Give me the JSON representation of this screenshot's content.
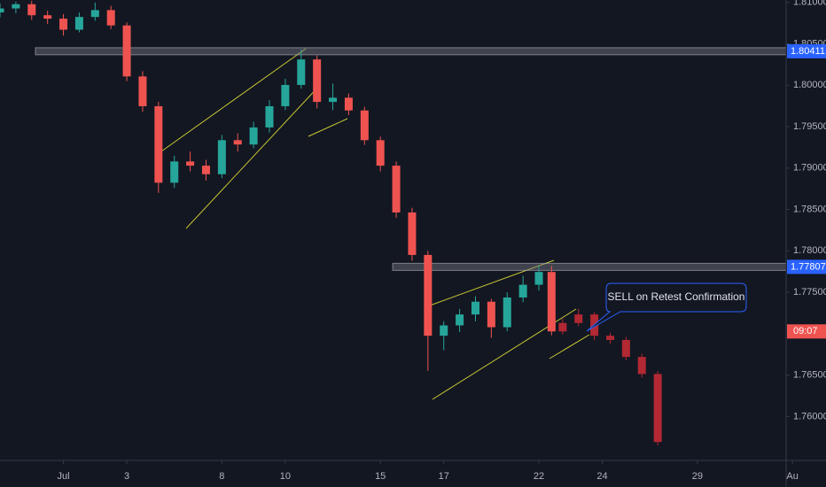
{
  "chart_data": {
    "type": "candlestick",
    "colors": {
      "up": "#26a69a",
      "down": "#ef5350",
      "projection": "#b22833",
      "level": "#787b86",
      "level_label": "#2962ff",
      "countdown": "#ef5350",
      "trendline": "#c8c832"
    },
    "xlim": [
      -2,
      22.8
    ],
    "xticks": [
      {
        "value": 0,
        "label": "Jul"
      },
      {
        "value": 2,
        "label": "3"
      },
      {
        "value": 5,
        "label": "8"
      },
      {
        "value": 7,
        "label": "10"
      },
      {
        "value": 10,
        "label": "15"
      },
      {
        "value": 12,
        "label": "17"
      },
      {
        "value": 15,
        "label": "22"
      },
      {
        "value": 17,
        "label": "24"
      },
      {
        "value": 20,
        "label": "29"
      },
      {
        "value": 23,
        "label": "Au"
      }
    ],
    "ylim": [
      1.75469,
      1.8103
    ],
    "yticks": [
      {
        "value": 1.81,
        "label": "1.81000"
      },
      {
        "value": 1.805,
        "label": "1.80500"
      },
      {
        "value": 1.8,
        "label": "1.80000"
      },
      {
        "value": 1.795,
        "label": "1.79500"
      },
      {
        "value": 1.79,
        "label": "1.79000"
      },
      {
        "value": 1.785,
        "label": "1.78500"
      },
      {
        "value": 1.78,
        "label": "1.78000"
      },
      {
        "value": 1.775,
        "label": "1.77500"
      },
      {
        "value": 1.765,
        "label": "1.76500"
      },
      {
        "value": 1.76,
        "label": "1.76000"
      }
    ],
    "levels": [
      1.80411,
      1.77807
    ],
    "countdown": "09:07",
    "annotation": "SELL on Retest Confirmation",
    "candles": [
      {
        "x": -2,
        "o": 1.8088,
        "h": 1.8099,
        "l": 1.8082,
        "c": 1.80928
      },
      {
        "x": -1.5,
        "o": 1.80928,
        "h": 1.8101,
        "l": 1.8087,
        "c": 1.80979
      },
      {
        "x": -1,
        "o": 1.80979,
        "h": 1.8102,
        "l": 1.8079,
        "c": 1.80846
      },
      {
        "x": -0.5,
        "o": 1.80846,
        "h": 1.809,
        "l": 1.8074,
        "c": 1.80805
      },
      {
        "x": 0,
        "o": 1.80805,
        "h": 1.8086,
        "l": 1.806,
        "c": 1.80671
      },
      {
        "x": 0.5,
        "o": 1.80671,
        "h": 1.8088,
        "l": 1.8064,
        "c": 1.80825
      },
      {
        "x": 1,
        "o": 1.80825,
        "h": 1.81,
        "l": 1.8078,
        "c": 1.80908
      },
      {
        "x": 1.5,
        "o": 1.80908,
        "h": 1.8096,
        "l": 1.8068,
        "c": 1.80723
      },
      {
        "x": 2,
        "o": 1.80723,
        "h": 1.8076,
        "l": 1.8005,
        "c": 1.80107
      },
      {
        "x": 2.5,
        "o": 1.80107,
        "h": 1.8017,
        "l": 1.7968,
        "c": 1.79747
      },
      {
        "x": 3,
        "o": 1.79747,
        "h": 1.798,
        "l": 1.787,
        "c": 1.78823
      },
      {
        "x": 3.5,
        "o": 1.78823,
        "h": 1.7915,
        "l": 1.7876,
        "c": 1.7908
      },
      {
        "x": 4,
        "o": 1.7908,
        "h": 1.792,
        "l": 1.7896,
        "c": 1.79029
      },
      {
        "x": 4.5,
        "o": 1.79029,
        "h": 1.791,
        "l": 1.7885,
        "c": 1.78926
      },
      {
        "x": 5,
        "o": 1.78926,
        "h": 1.794,
        "l": 1.7888,
        "c": 1.79337
      },
      {
        "x": 5.5,
        "o": 1.79337,
        "h": 1.7942,
        "l": 1.792,
        "c": 1.79285
      },
      {
        "x": 6,
        "o": 1.79285,
        "h": 1.7956,
        "l": 1.7924,
        "c": 1.79491
      },
      {
        "x": 6.5,
        "o": 1.79491,
        "h": 1.7982,
        "l": 1.7943,
        "c": 1.79747
      },
      {
        "x": 7,
        "o": 1.79747,
        "h": 1.8008,
        "l": 1.797,
        "c": 1.80004
      },
      {
        "x": 7.5,
        "o": 1.80004,
        "h": 1.8043,
        "l": 1.7996,
        "c": 1.80312
      },
      {
        "x": 8,
        "o": 1.80312,
        "h": 1.8036,
        "l": 1.7972,
        "c": 1.79799
      },
      {
        "x": 8.5,
        "o": 1.79799,
        "h": 1.8002,
        "l": 1.797,
        "c": 1.7985
      },
      {
        "x": 9,
        "o": 1.7985,
        "h": 1.799,
        "l": 1.7964,
        "c": 1.79696
      },
      {
        "x": 9.5,
        "o": 1.79696,
        "h": 1.7974,
        "l": 1.7928,
        "c": 1.79337
      },
      {
        "x": 10,
        "o": 1.79337,
        "h": 1.7938,
        "l": 1.7896,
        "c": 1.79029
      },
      {
        "x": 10.5,
        "o": 1.79029,
        "h": 1.7908,
        "l": 1.784,
        "c": 1.78464
      },
      {
        "x": 11,
        "o": 1.78464,
        "h": 1.7852,
        "l": 1.7788,
        "c": 1.77951
      },
      {
        "x": 11.5,
        "o": 1.77951,
        "h": 1.78,
        "l": 1.7655,
        "c": 1.76975
      },
      {
        "x": 12,
        "o": 1.76975,
        "h": 1.7715,
        "l": 1.768,
        "c": 1.771
      },
      {
        "x": 12.5,
        "o": 1.771,
        "h": 1.773,
        "l": 1.7702,
        "c": 1.77232
      },
      {
        "x": 13,
        "o": 1.77232,
        "h": 1.7745,
        "l": 1.7715,
        "c": 1.77386
      },
      {
        "x": 13.5,
        "o": 1.77386,
        "h": 1.7742,
        "l": 1.7695,
        "c": 1.77078
      },
      {
        "x": 14,
        "o": 1.77078,
        "h": 1.775,
        "l": 1.7703,
        "c": 1.77437
      },
      {
        "x": 14.5,
        "o": 1.77437,
        "h": 1.777,
        "l": 1.7738,
        "c": 1.77591
      },
      {
        "x": 15,
        "o": 1.77591,
        "h": 1.7782,
        "l": 1.7752,
        "c": 1.77745
      },
      {
        "x": 15.4,
        "o": 1.77745,
        "h": 1.7782,
        "l": 1.7698,
        "c": 1.77027
      }
    ],
    "projection": [
      {
        "x": 15.75,
        "o": 1.77027,
        "h": 1.7718,
        "l": 1.7699,
        "c": 1.77129
      },
      {
        "x": 16.25,
        "o": 1.77129,
        "h": 1.773,
        "l": 1.7709,
        "c": 1.77232
      },
      {
        "x": 16.75,
        "o": 1.77232,
        "h": 1.7726,
        "l": 1.7692,
        "c": 1.76975
      },
      {
        "x": 17.25,
        "o": 1.76975,
        "h": 1.7701,
        "l": 1.7688,
        "c": 1.76924
      },
      {
        "x": 17.75,
        "o": 1.76924,
        "h": 1.7696,
        "l": 1.7668,
        "c": 1.76719
      },
      {
        "x": 18.25,
        "o": 1.76719,
        "h": 1.7676,
        "l": 1.7647,
        "c": 1.76513
      },
      {
        "x": 18.75,
        "o": 1.76513,
        "h": 1.7655,
        "l": 1.7565,
        "c": 1.75692
      }
    ]
  }
}
